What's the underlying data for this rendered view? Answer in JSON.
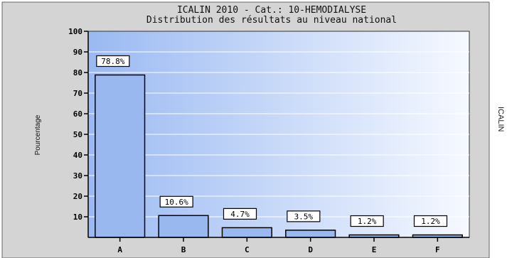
{
  "chart_data": {
    "type": "bar",
    "title": "ICALIN 2010 - Cat.: 10-HEMODIALYSE",
    "subtitle": "Distribution des résultats au niveau national",
    "ylabel": "Pourcentage",
    "xlabel": "",
    "categories": [
      "A",
      "B",
      "C",
      "D",
      "E",
      "F"
    ],
    "values": [
      78.8,
      10.6,
      4.7,
      3.5,
      1.2,
      1.2
    ],
    "data_labels": [
      "78.8%",
      "10.6%",
      "4.7%",
      "3.5%",
      "1.2%",
      "1.2%"
    ],
    "ylim": [
      0,
      100
    ],
    "yticks": [
      10,
      20,
      30,
      40,
      50,
      60,
      70,
      80,
      90,
      100
    ],
    "grid": true,
    "legend": "none",
    "colors": {
      "bar_fill": "#9ab8f0",
      "frame_bg": "#d4d4d4",
      "plot_left": "#9ab9f2",
      "plot_right": "#f6f9ff"
    }
  },
  "side_label": "ICALIN"
}
